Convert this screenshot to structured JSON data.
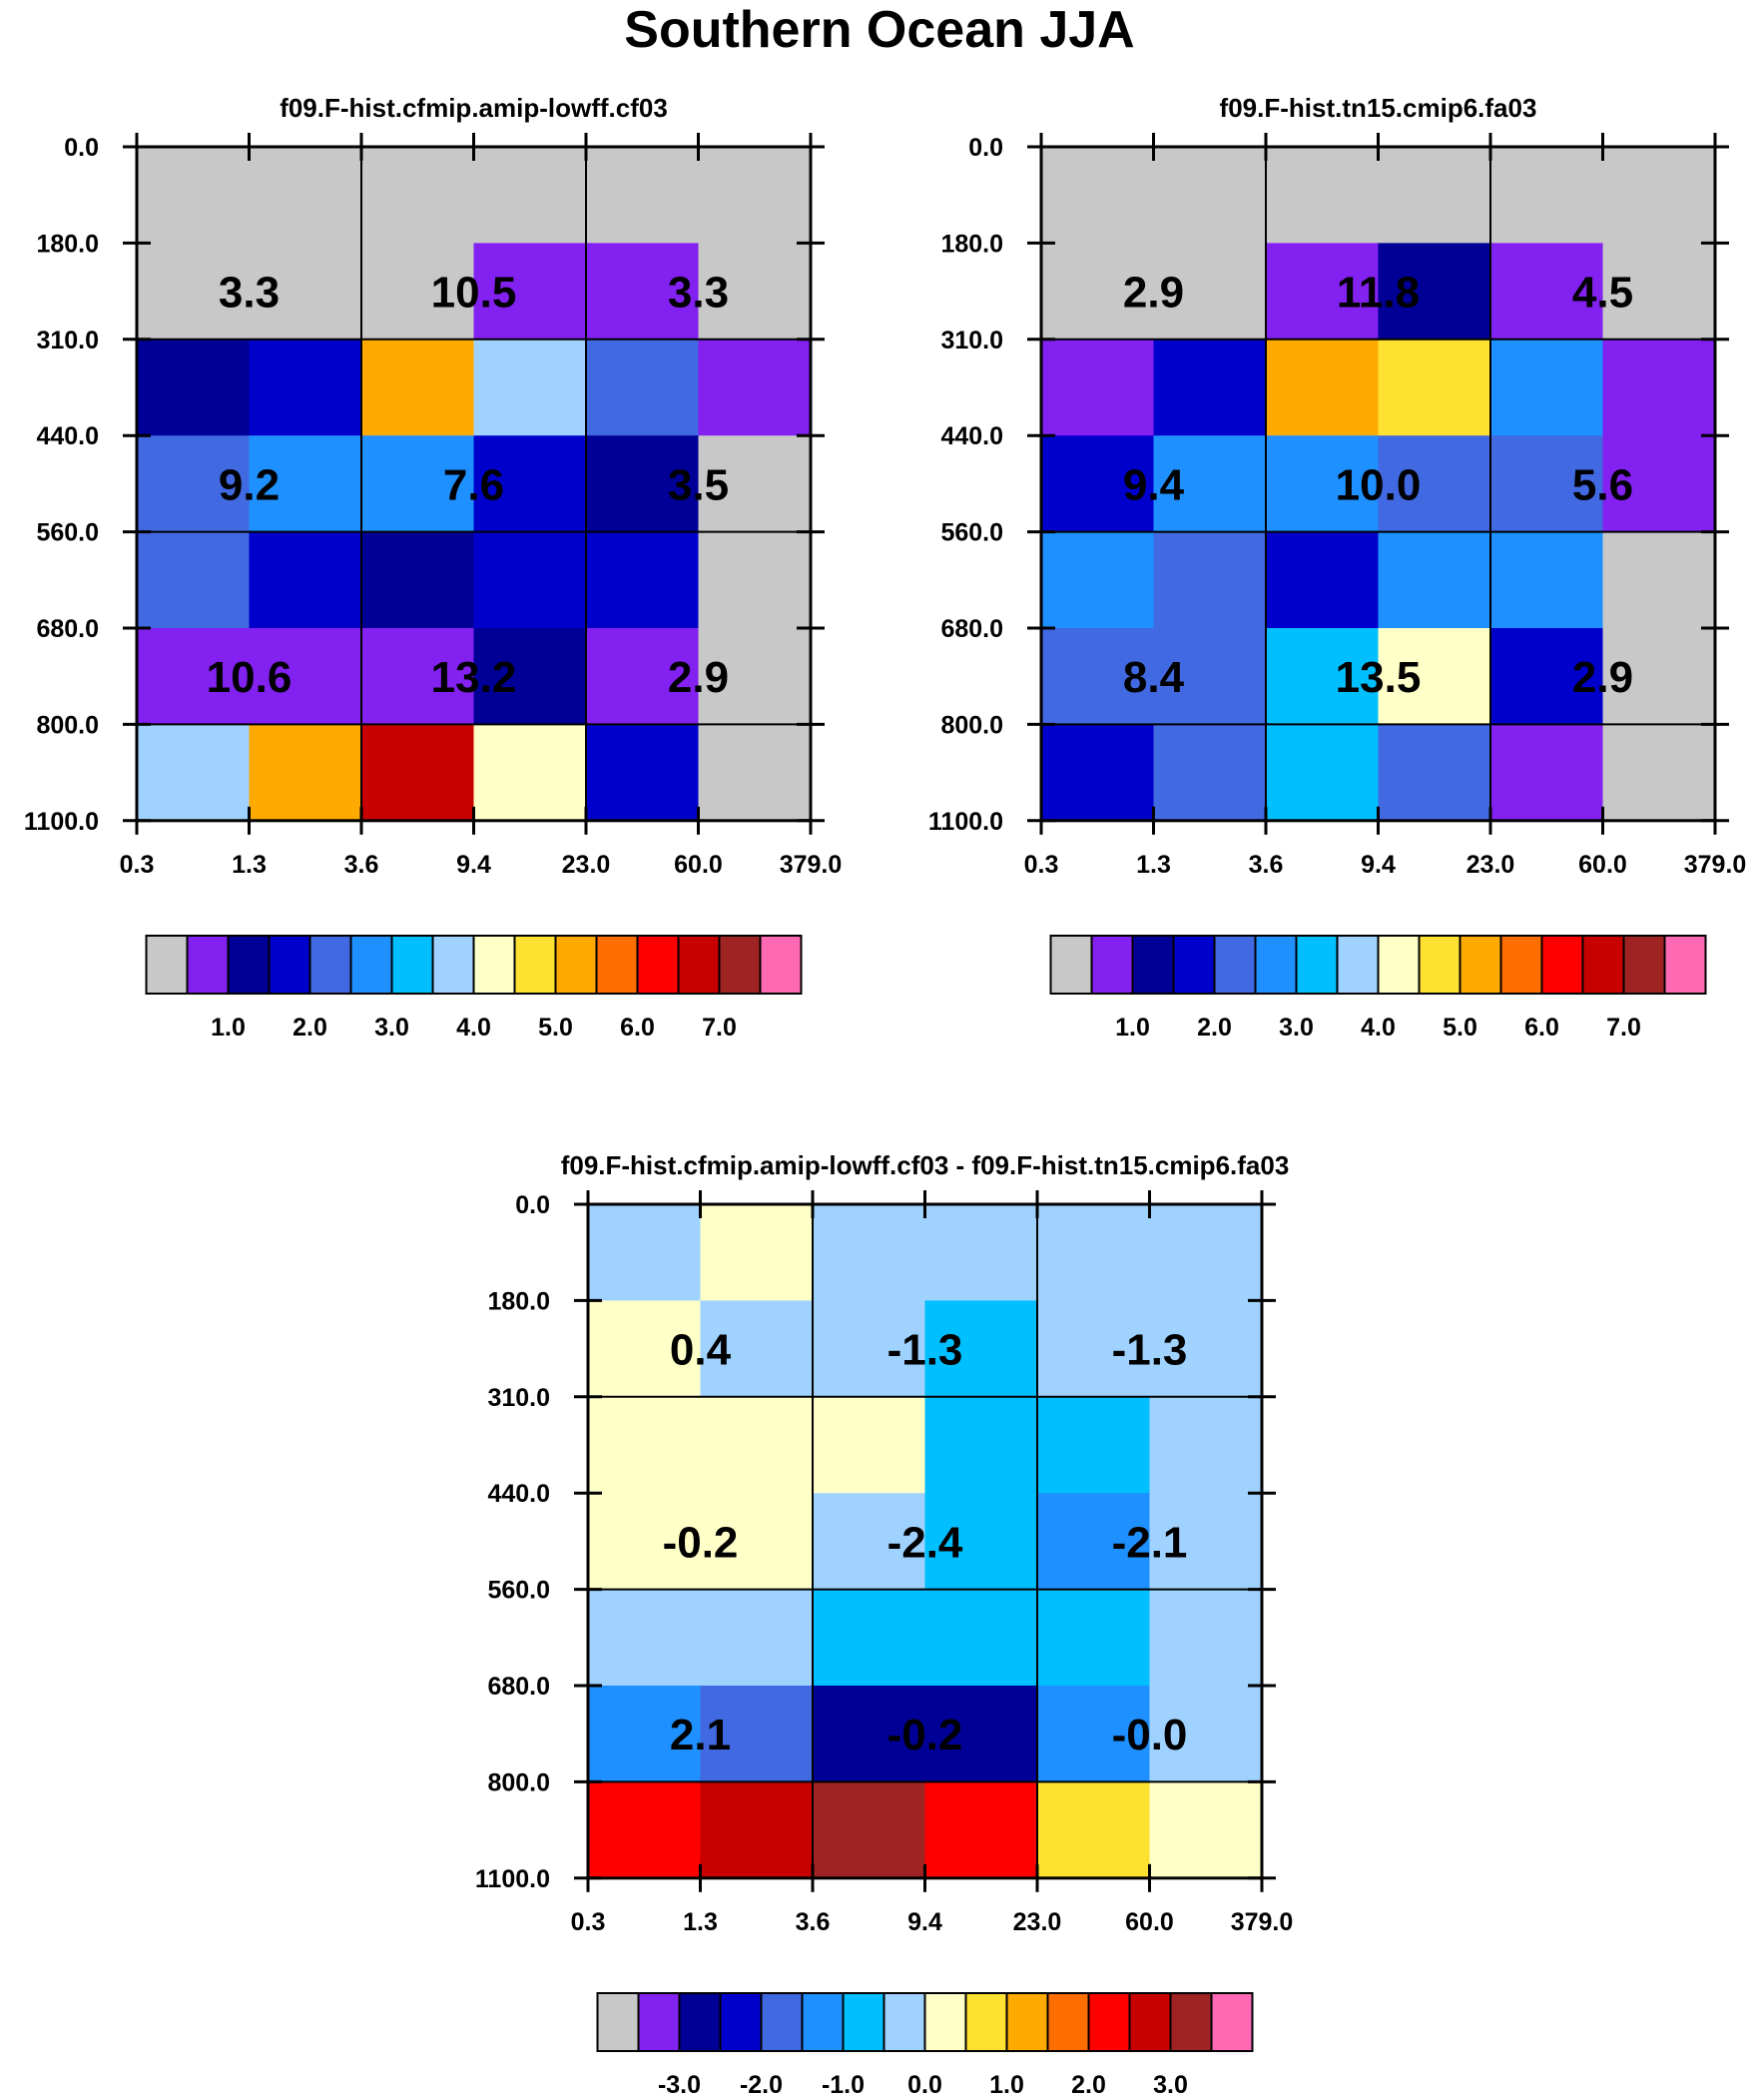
{
  "title": "Southern Ocean JJA",
  "colors": {
    "absolute": [
      "#c8c8c8",
      "#8221f0",
      "#000096",
      "#0000cd",
      "#4169e1",
      "#1e90ff",
      "#00bfff",
      "#a0d2ff",
      "#ffffc8",
      "#ffe132",
      "#ffaa00",
      "#ff6e00",
      "#ff0000",
      "#c80000",
      "#a02323",
      "#ff69b4"
    ],
    "difference": [
      "#c8c8c8",
      "#8221f0",
      "#000096",
      "#0000cd",
      "#4169e1",
      "#1e90ff",
      "#00bfff",
      "#a0d2ff",
      "#ffffc8",
      "#ffe132",
      "#ffaa00",
      "#ff6e00",
      "#ff0000",
      "#c80000",
      "#a02323",
      "#ff69b4"
    ]
  },
  "chart_data": [
    {
      "type": "heatmap",
      "title": "f09.F-hist.cfmip.amip-lowff.cf03",
      "x_ticks": [
        "0.3",
        "1.3",
        "3.6",
        "9.4",
        "23.0",
        "60.0",
        "379.0"
      ],
      "y_ticks": [
        "0.0",
        "180.0",
        "310.0",
        "440.0",
        "560.0",
        "680.0",
        "800.0",
        "1100.0"
      ],
      "cells": [
        [
          0,
          0,
          0,
          0,
          0,
          0
        ],
        [
          0,
          0,
          0,
          1,
          1,
          0
        ],
        [
          2,
          3,
          10,
          7,
          4,
          1
        ],
        [
          4,
          5,
          5,
          3,
          2,
          0
        ],
        [
          4,
          3,
          2,
          3,
          3,
          0
        ],
        [
          1,
          1,
          1,
          2,
          1,
          0
        ],
        [
          7,
          10,
          13,
          8,
          3,
          0
        ]
      ],
      "box_values": [
        [
          "3.3",
          "10.5",
          "3.3"
        ],
        [
          "9.2",
          "7.6",
          "3.5"
        ],
        [
          "10.6",
          "13.2",
          "2.9"
        ]
      ],
      "colorbar": {
        "palette": "absolute",
        "labels": [
          "1.0",
          "2.0",
          "3.0",
          "4.0",
          "5.0",
          "6.0",
          "7.0"
        ]
      }
    },
    {
      "type": "heatmap",
      "title": "f09.F-hist.tn15.cmip6.fa03",
      "x_ticks": [
        "0.3",
        "1.3",
        "3.6",
        "9.4",
        "23.0",
        "60.0",
        "379.0"
      ],
      "y_ticks": [
        "0.0",
        "180.0",
        "310.0",
        "440.0",
        "560.0",
        "680.0",
        "800.0",
        "1100.0"
      ],
      "cells": [
        [
          0,
          0,
          0,
          0,
          0,
          0
        ],
        [
          0,
          0,
          1,
          2,
          1,
          0
        ],
        [
          1,
          3,
          10,
          9,
          5,
          1
        ],
        [
          3,
          5,
          5,
          4,
          4,
          1
        ],
        [
          5,
          4,
          3,
          5,
          5,
          0
        ],
        [
          4,
          4,
          6,
          8,
          3,
          0
        ],
        [
          3,
          4,
          6,
          4,
          1,
          0
        ]
      ],
      "box_values": [
        [
          "2.9",
          "11.8",
          "4.5"
        ],
        [
          "9.4",
          "10.0",
          "5.6"
        ],
        [
          "8.4",
          "13.5",
          "2.9"
        ]
      ],
      "colorbar": {
        "palette": "absolute",
        "labels": [
          "1.0",
          "2.0",
          "3.0",
          "4.0",
          "5.0",
          "6.0",
          "7.0"
        ]
      }
    },
    {
      "type": "heatmap",
      "title": "f09.F-hist.cfmip.amip-lowff.cf03 - f09.F-hist.tn15.cmip6.fa03",
      "x_ticks": [
        "0.3",
        "1.3",
        "3.6",
        "9.4",
        "23.0",
        "60.0",
        "379.0"
      ],
      "y_ticks": [
        "0.0",
        "180.0",
        "310.0",
        "440.0",
        "560.0",
        "680.0",
        "800.0",
        "1100.0"
      ],
      "cells": [
        [
          7,
          8,
          7,
          7,
          7,
          7
        ],
        [
          8,
          7,
          7,
          6,
          7,
          7
        ],
        [
          8,
          8,
          8,
          6,
          6,
          7
        ],
        [
          8,
          8,
          7,
          6,
          5,
          7
        ],
        [
          7,
          7,
          6,
          6,
          6,
          7
        ],
        [
          5,
          4,
          2,
          2,
          5,
          7
        ],
        [
          12,
          13,
          14,
          12,
          9,
          8
        ]
      ],
      "box_values": [
        [
          "0.4",
          "-1.3",
          "-1.3"
        ],
        [
          "-0.2",
          "-2.4",
          "-2.1"
        ],
        [
          "2.1",
          "-0.2",
          "-0.0"
        ]
      ],
      "colorbar": {
        "palette": "difference",
        "labels": [
          "-3.0",
          "-2.0",
          "-1.0",
          "0.0",
          "1.0",
          "2.0",
          "3.0"
        ]
      }
    }
  ]
}
